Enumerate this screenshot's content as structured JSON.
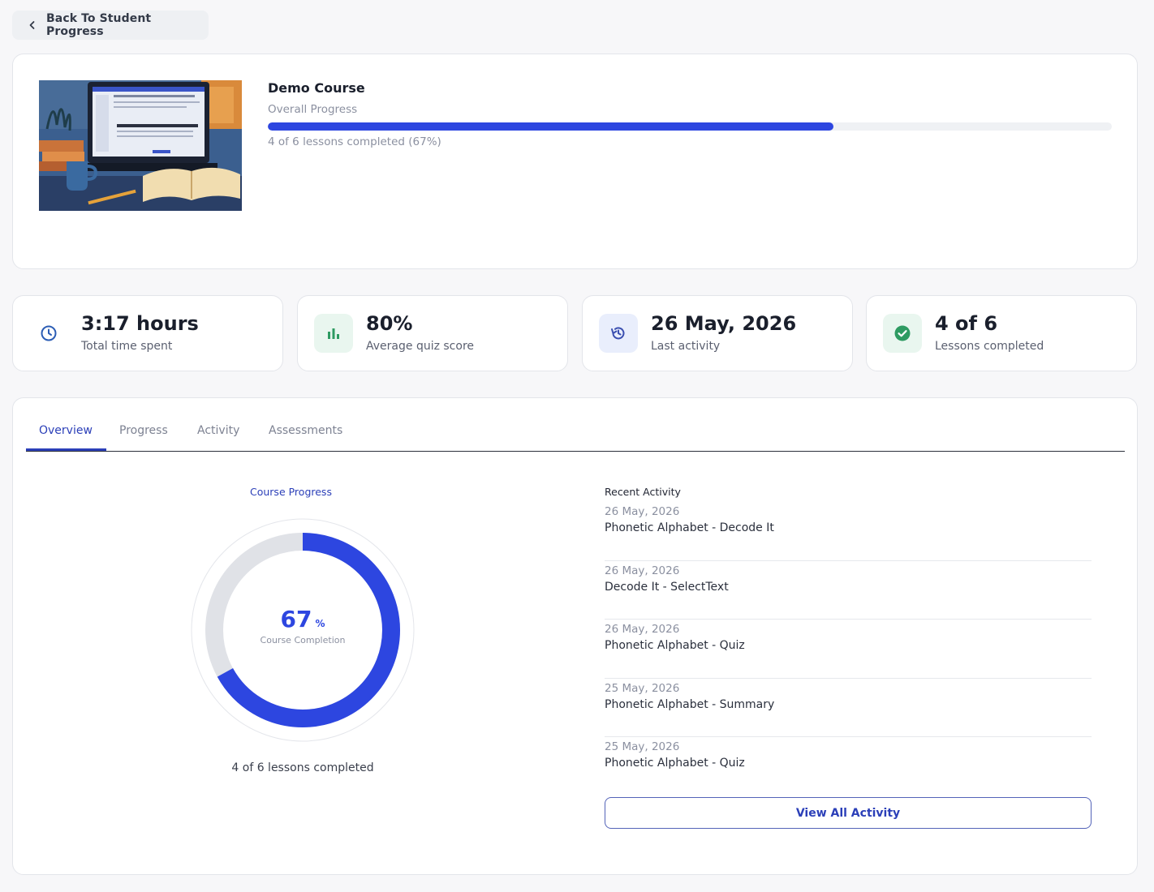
{
  "back_button": {
    "label": "Back To Student Progress"
  },
  "course": {
    "title": "Demo Course",
    "overall_label": "Overall Progress",
    "progress_fraction": 0.67,
    "progress_text": "4 of 6 lessons completed (67%)"
  },
  "stats": [
    {
      "value": "3:17 hours",
      "label": "Total time spent",
      "icon": "clock-icon",
      "icon_bg": "#ffffff",
      "icon_color": "#2c5db5"
    },
    {
      "value": "80%",
      "label": "Average quiz score",
      "icon": "bar-chart-icon",
      "icon_bg": "#e9f6ef",
      "icon_color": "#2e9b62"
    },
    {
      "value": "26 May, 2026",
      "label": "Last activity",
      "icon": "history-icon",
      "icon_bg": "#e9eefc",
      "icon_color": "#3b4fb0"
    },
    {
      "value": "4 of 6",
      "label": "Lessons completed",
      "icon": "check-circle-icon",
      "icon_bg": "#e9f6ef",
      "icon_color": "#2e9b62"
    }
  ],
  "tabs": [
    {
      "label": "Overview",
      "active": true
    },
    {
      "label": "Progress",
      "active": false
    },
    {
      "label": "Activity",
      "active": false
    },
    {
      "label": "Assessments",
      "active": false
    }
  ],
  "overview": {
    "course_progress_title": "Course Progress",
    "completion_value": "67",
    "completion_unit": "%",
    "completion_fraction": 0.67,
    "completion_label": "Course Completion",
    "lessons_text": "4 of 6 lessons completed"
  },
  "recent_activity": {
    "title": "Recent Activity",
    "items": [
      {
        "date": "26 May, 2026",
        "name": "Phonetic Alphabet - Decode It"
      },
      {
        "date": "26 May, 2026",
        "name": "Decode It - SelectText"
      },
      {
        "date": "26 May, 2026",
        "name": "Phonetic Alphabet - Quiz"
      },
      {
        "date": "25 May, 2026",
        "name": "Phonetic Alphabet - Summary"
      },
      {
        "date": "25 May, 2026",
        "name": "Phonetic Alphabet - Quiz"
      }
    ],
    "view_all_label": "View All Activity"
  },
  "colors": {
    "accent": "#2d46e0",
    "tab_active": "#2b3fb8",
    "track": "#e0e2e7"
  }
}
